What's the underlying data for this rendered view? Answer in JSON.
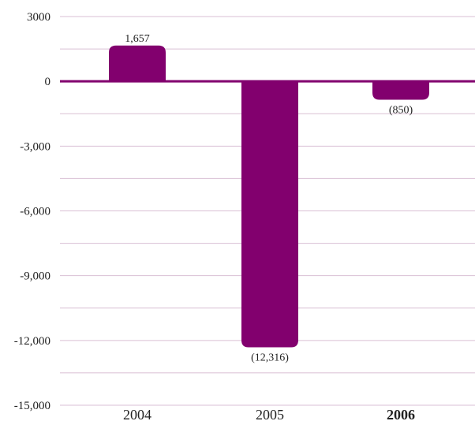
{
  "chart_data": {
    "type": "bar",
    "categories": [
      "2004",
      "2005",
      "2006"
    ],
    "bold_categories": [
      "2006"
    ],
    "values": [
      1657,
      -12316,
      -850
    ],
    "data_labels": [
      "1,657",
      "(12,316)",
      "(850)"
    ],
    "ylim": [
      -15000,
      3000
    ],
    "yticks": [
      3000,
      0,
      -3000,
      -6000,
      -9000,
      -12000,
      -15000
    ],
    "ytick_labels": [
      "3000",
      "0",
      "-3,000",
      "-6,000",
      "-9,000",
      "-12,000",
      "-15,000"
    ],
    "minor_grid_step": 1500,
    "grid": true,
    "title": "",
    "xlabel": "",
    "ylabel": "",
    "colors": {
      "bar": "#82006E",
      "zero_line": "#82006E",
      "grid": "#D9BFD4"
    }
  }
}
